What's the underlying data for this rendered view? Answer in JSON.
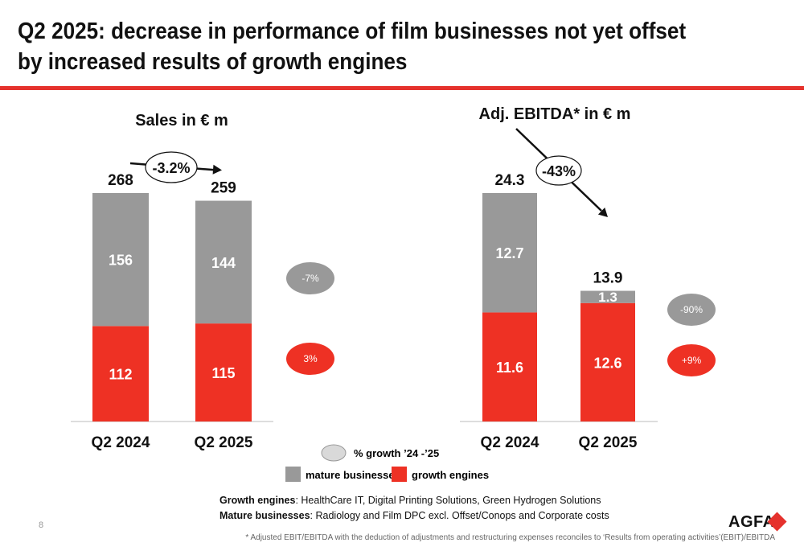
{
  "page": {
    "title": "Q2 2025: decrease in performance of film businesses not yet offset by increased results of growth engines",
    "page_number": "8",
    "logo_text": "AGFA",
    "footnote": "* Adjusted EBIT/EBITDA with the deduction of adjustments and restructuring expenses reconciles to ‘Results from operating activities’(EBIT)/EBITDA"
  },
  "notes": {
    "growth_label": "Growth engines",
    "growth_text": ": HealthCare IT, Digital Printing Solutions, Green Hydrogen Solutions",
    "mature_label": "Mature businesses",
    "mature_text": ": Radiology and Film DPC excl. Offset/Conops and Corporate costs"
  },
  "legend": {
    "growth_pct": "% growth ’24 -’25",
    "mature": "mature businesses",
    "growth": "growth engines"
  },
  "colors": {
    "mature": "#999999",
    "growth": "#ee3124",
    "accent": "#e5322d"
  },
  "chart_data": [
    {
      "type": "bar",
      "stacked": true,
      "title": "Sales in € m",
      "categories": [
        "Q2 2024",
        "Q2 2025"
      ],
      "series": [
        {
          "name": "growth engines",
          "values": [
            112,
            115
          ]
        },
        {
          "name": "mature businesses",
          "values": [
            156,
            144
          ]
        }
      ],
      "totals": [
        268,
        259
      ],
      "total_labels": [
        "268",
        "259"
      ],
      "segment_labels": {
        "growth engines": [
          "112",
          "115"
        ],
        "mature businesses": [
          "156",
          "144"
        ]
      },
      "change_label": "-3.2%",
      "growth_bubbles": {
        "mature businesses": "-7%",
        "growth engines": "3%"
      }
    },
    {
      "type": "bar",
      "stacked": true,
      "title": "Adj. EBITDA* in € m",
      "categories": [
        "Q2 2024",
        "Q2 2025"
      ],
      "series": [
        {
          "name": "growth engines",
          "values": [
            11.6,
            12.6
          ]
        },
        {
          "name": "mature businesses",
          "values": [
            12.7,
            1.3
          ]
        }
      ],
      "totals": [
        24.3,
        13.9
      ],
      "total_labels": [
        "24.3",
        "13.9"
      ],
      "segment_labels": {
        "growth engines": [
          "11.6",
          "12.6"
        ],
        "mature businesses": [
          "12.7",
          "1.3"
        ]
      },
      "change_label": "-43%",
      "growth_bubbles": {
        "mature businesses": "-90%",
        "growth engines": "+9%"
      }
    }
  ]
}
